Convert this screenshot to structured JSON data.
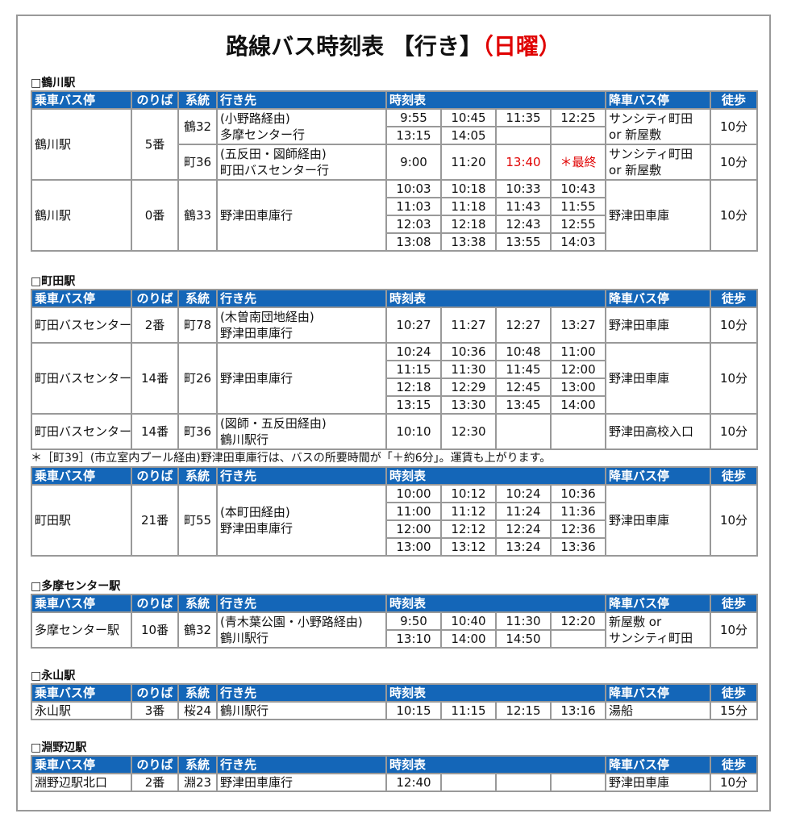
{
  "title": {
    "main": "路線バス時刻表 【行き】",
    "day": "（日曜）"
  },
  "headers": [
    "乗車バス停",
    "のりば",
    "系統",
    "行き先",
    "時刻表",
    "降車バス停",
    "徒歩"
  ],
  "sections": [
    {
      "title": "□鶴川駅",
      "tables": [
        {
          "groups": [
            {
              "stop": "鶴川駅",
              "platform": "5番",
              "routes": [
                {
                  "code": "鶴32",
                  "dest": [
                    "(小野路経由)",
                    "多摩センター行"
                  ],
                  "times": [
                    [
                      "9:55",
                      "10:45",
                      "11:35",
                      "12:25"
                    ],
                    [
                      "13:15",
                      "14:05",
                      "",
                      ""
                    ]
                  ],
                  "alight": [
                    "サンシティ町田",
                    "or 新屋敷"
                  ],
                  "walk": "10分"
                },
                {
                  "code": "町36",
                  "dest": [
                    "(五反田・図師経由)",
                    "町田バスセンター行"
                  ],
                  "times": [
                    [
                      "9:00",
                      "11:20",
                      "13:40",
                      "＊最終"
                    ]
                  ],
                  "red": [
                    "13:40",
                    "＊最終"
                  ],
                  "alight": [
                    "サンシティ町田",
                    "or 新屋敷"
                  ],
                  "walk": "10分"
                }
              ]
            },
            {
              "stop": "鶴川駅",
              "platform": "0番",
              "routes": [
                {
                  "code": "鶴33",
                  "dest": [
                    "野津田車庫行"
                  ],
                  "times": [
                    [
                      "10:03",
                      "10:18",
                      "10:33",
                      "10:43"
                    ],
                    [
                      "11:03",
                      "11:18",
                      "11:43",
                      "11:55"
                    ],
                    [
                      "12:03",
                      "12:18",
                      "12:43",
                      "12:55"
                    ],
                    [
                      "13:08",
                      "13:38",
                      "13:55",
                      "14:03"
                    ]
                  ],
                  "alight": [
                    "野津田車庫"
                  ],
                  "walk": "10分"
                }
              ]
            }
          ]
        }
      ]
    },
    {
      "title": "□町田駅",
      "tables": [
        {
          "groups": [
            {
              "stop": "町田バスセンター",
              "platform": "2番",
              "routes": [
                {
                  "code": "町78",
                  "dest": [
                    "(木曽南団地経由)",
                    "野津田車庫行"
                  ],
                  "times": [
                    [
                      "10:27",
                      "11:27",
                      "12:27",
                      "13:27"
                    ]
                  ],
                  "alight": [
                    "野津田車庫"
                  ],
                  "walk": "10分"
                }
              ]
            },
            {
              "stop": "町田バスセンター",
              "platform": "14番",
              "routes": [
                {
                  "code": "町26",
                  "dest": [
                    "野津田車庫行"
                  ],
                  "times": [
                    [
                      "10:24",
                      "10:36",
                      "10:48",
                      "11:00"
                    ],
                    [
                      "11:15",
                      "11:30",
                      "11:45",
                      "12:00"
                    ],
                    [
                      "12:18",
                      "12:29",
                      "12:45",
                      "13:00"
                    ],
                    [
                      "13:15",
                      "13:30",
                      "13:45",
                      "14:00"
                    ]
                  ],
                  "alight": [
                    "野津田車庫"
                  ],
                  "walk": "10分"
                }
              ]
            },
            {
              "stop": "町田バスセンター",
              "platform": "14番",
              "routes": [
                {
                  "code": "町36",
                  "dest": [
                    "(図師・五反田経由)",
                    "鶴川駅行"
                  ],
                  "times": [
                    [
                      "10:10",
                      "12:30",
                      "",
                      ""
                    ]
                  ],
                  "alight": [
                    "野津田高校入口"
                  ],
                  "walk": "10分"
                }
              ]
            }
          ]
        },
        {
          "note": "＊［町39］(市立室内プール経由)野津田車庫行は、バスの所要時間が「＋約6分」。運賃も上がります。",
          "groups": [
            {
              "stop": "町田駅",
              "platform": "21番",
              "routes": [
                {
                  "code": "町55",
                  "dest": [
                    "(本町田経由)",
                    "野津田車庫行"
                  ],
                  "times": [
                    [
                      "10:00",
                      "10:12",
                      "10:24",
                      "10:36"
                    ],
                    [
                      "11:00",
                      "11:12",
                      "11:24",
                      "11:36"
                    ],
                    [
                      "12:00",
                      "12:12",
                      "12:24",
                      "12:36"
                    ],
                    [
                      "13:00",
                      "13:12",
                      "13:24",
                      "13:36"
                    ]
                  ],
                  "alight": [
                    "野津田車庫"
                  ],
                  "walk": "10分"
                }
              ]
            }
          ]
        }
      ]
    },
    {
      "title": "□多摩センター駅",
      "tables": [
        {
          "groups": [
            {
              "stop": "多摩センター駅",
              "platform": "10番",
              "routes": [
                {
                  "code": "鶴32",
                  "dest": [
                    "(青木葉公園・小野路経由)",
                    "鶴川駅行"
                  ],
                  "times": [
                    [
                      "9:50",
                      "10:40",
                      "11:30",
                      "12:20"
                    ],
                    [
                      "13:10",
                      "14:00",
                      "14:50",
                      ""
                    ]
                  ],
                  "alight": [
                    "新屋敷 or",
                    "サンシティ町田"
                  ],
                  "walk": "10分"
                }
              ]
            }
          ]
        }
      ]
    },
    {
      "title": "□永山駅",
      "tables": [
        {
          "groups": [
            {
              "stop": "永山駅",
              "platform": "3番",
              "routes": [
                {
                  "code": "桜24",
                  "dest": [
                    "鶴川駅行"
                  ],
                  "times": [
                    [
                      "10:15",
                      "11:15",
                      "12:15",
                      "13:16"
                    ]
                  ],
                  "alight": [
                    "湯船"
                  ],
                  "walk": "15分"
                }
              ]
            }
          ]
        }
      ]
    },
    {
      "title": "□淵野辺駅",
      "tables": [
        {
          "groups": [
            {
              "stop": "淵野辺駅北口",
              "platform": "2番",
              "routes": [
                {
                  "code": "淵23",
                  "dest": [
                    "野津田車庫行"
                  ],
                  "times": [
                    [
                      "12:40",
                      "",
                      "",
                      ""
                    ]
                  ],
                  "alight": [
                    "野津田車庫"
                  ],
                  "walk": "10分"
                }
              ]
            }
          ]
        }
      ]
    }
  ]
}
